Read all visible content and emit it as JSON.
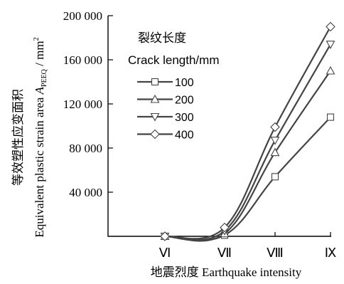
{
  "chart_data": {
    "type": "line",
    "xlabel": "地震烈度 Earthquake intensity",
    "ylabel_zh": "等效塑性应变面积",
    "ylabel_en": "Equivalent plastic strain area",
    "ylabel_var": "A",
    "ylabel_sub": "PEEQ",
    "ylabel_unit": " / mm",
    "ylabel_unit_sup": "2",
    "categories": [
      "Ⅵ",
      "Ⅶ",
      "Ⅷ",
      "Ⅸ"
    ],
    "ylim": [
      0,
      200000
    ],
    "yticks": [
      40000,
      80000,
      120000,
      160000,
      200000
    ],
    "ytick_labels": [
      "40 000",
      "80 000",
      "120 000",
      "160 000",
      "200 000"
    ],
    "legend_title_zh": "裂纹长度",
    "legend_title_en": "Crack length/mm",
    "legend_position": "top-left",
    "series": [
      {
        "name": "100",
        "marker": "square",
        "values": [
          0,
          1000,
          54000,
          108000
        ]
      },
      {
        "name": "200",
        "marker": "triangle-up",
        "values": [
          0,
          2500,
          76000,
          150000
        ]
      },
      {
        "name": "300",
        "marker": "triangle-down",
        "values": [
          0,
          5000,
          87000,
          174000
        ]
      },
      {
        "name": "400",
        "marker": "diamond",
        "values": [
          0,
          8000,
          99000,
          190000
        ]
      }
    ]
  }
}
